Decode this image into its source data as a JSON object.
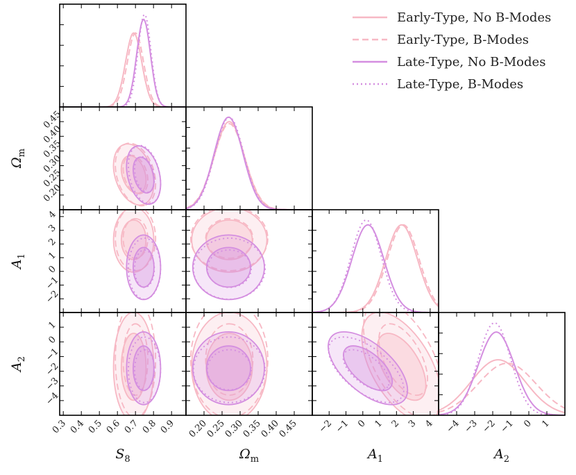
{
  "chart_data": {
    "type": "corner",
    "parameters": [
      {
        "key": "S8",
        "label": "S",
        "sub": "8",
        "range": [
          0.28,
          0.98
        ],
        "ticks": [
          0.3,
          0.4,
          0.5,
          0.6,
          0.7,
          0.8,
          0.9
        ]
      },
      {
        "key": "Om",
        "label": "Ω",
        "sub": "m",
        "range": [
          0.15,
          0.5
        ],
        "ticks": [
          0.2,
          0.25,
          0.3,
          0.35,
          0.4,
          0.45
        ]
      },
      {
        "key": "A1",
        "label": "A",
        "sub": "1",
        "range": [
          -3.0,
          4.5
        ],
        "ticks": [
          -2,
          -1,
          0,
          1,
          2,
          3,
          4
        ]
      },
      {
        "key": "A2",
        "label": "A",
        "sub": "2",
        "range": [
          -5.0,
          2.0
        ],
        "ticks": [
          -4,
          -3,
          -2,
          -1,
          0,
          1
        ]
      }
    ],
    "tick_labels": {
      "S8": [
        "0.3",
        "0.4",
        "0.5",
        "0.6",
        "0.7",
        "0.8",
        "0.9"
      ],
      "Om_x": [
        "0.20",
        "0.25",
        "0.30",
        "0.35",
        "0.40",
        "0.45"
      ],
      "Om_y": [
        "0.20",
        "0.25",
        "0.30",
        "0.35",
        "0.40",
        "0.45"
      ],
      "A1": [
        "−2",
        "−1",
        "0",
        "1",
        "2",
        "3",
        "4"
      ],
      "A2": [
        "−4",
        "−3",
        "−2",
        "−1",
        "0",
        "1"
      ]
    },
    "axis_titles": {
      "S8": "S",
      "Om": "Ω",
      "A1": "A",
      "A2": "A"
    },
    "axis_subs": {
      "S8": "8",
      "Om": "m",
      "A1": "1",
      "A2": "2"
    },
    "legend_placement": "top-right",
    "series": [
      {
        "name": "Early-Type, No B-Modes",
        "color": "#f7b8c4",
        "dash": "solid",
        "S8": {
          "mean": 0.69,
          "sigma": 0.045
        },
        "Om": {
          "mean": 0.27,
          "sigma": 0.042
        },
        "A1": {
          "mean": 2.3,
          "sigma": 0.95
        },
        "A2": {
          "mean": -1.7,
          "sigma": 1.5
        },
        "rho_A1A2": -0.55
      },
      {
        "name": "Early-Type, B-Modes",
        "color": "#f7b8c4",
        "dash": "dashed",
        "S8": {
          "mean": 0.7,
          "sigma": 0.045
        },
        "Om": {
          "mean": 0.27,
          "sigma": 0.043
        },
        "A1": {
          "mean": 2.4,
          "sigma": 0.95
        },
        "A2": {
          "mean": -1.2,
          "sigma": 1.6
        },
        "rho_A1A2": -0.55
      },
      {
        "name": "Late-Type, No B-Modes",
        "color": "#d48ee0",
        "dash": "solid",
        "S8": {
          "mean": 0.745,
          "sigma": 0.038
        },
        "Om": {
          "mean": 0.268,
          "sigma": 0.04
        },
        "A1": {
          "mean": 0.3,
          "sigma": 0.95
        },
        "A2": {
          "mean": -1.8,
          "sigma": 1.0
        },
        "rho_A1A2": -0.6
      },
      {
        "name": "Late-Type, B-Modes",
        "color": "#d48ee0",
        "dash": "dotted",
        "S8": {
          "mean": 0.75,
          "sigma": 0.036
        },
        "Om": {
          "mean": 0.27,
          "sigma": 0.04
        },
        "A1": {
          "mean": 0.2,
          "sigma": 0.9
        },
        "A2": {
          "mean": -1.9,
          "sigma": 0.9
        },
        "rho_A1A2": -0.6
      }
    ]
  }
}
